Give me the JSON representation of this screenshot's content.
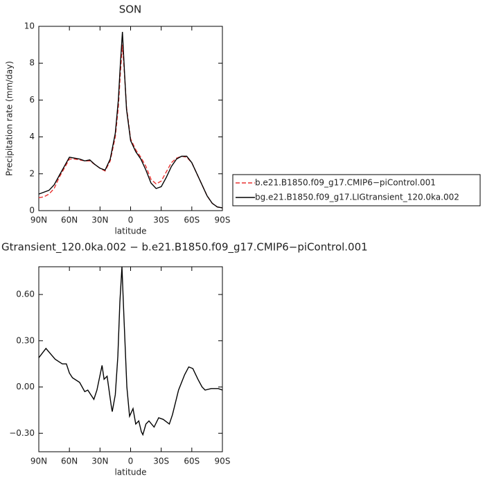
{
  "chart_data": [
    {
      "type": "line",
      "title": "SON",
      "xlabel": "latitude",
      "ylabel": "Precipitation rate (mm/day)",
      "x": [
        90,
        85,
        80,
        75,
        70,
        65,
        60,
        55,
        50,
        45,
        40,
        35,
        30,
        25,
        20,
        15,
        12,
        10,
        8,
        6,
        4,
        0,
        -5,
        -10,
        -15,
        -20,
        -25,
        -30,
        -35,
        -40,
        -45,
        -50,
        -55,
        -60,
        -65,
        -70,
        -75,
        -80,
        -85,
        -90
      ],
      "series": [
        {
          "name": "b.e21.B1850.f09_g17.CMIP6−piControl.001",
          "color": "#e8312f",
          "line_style": "dashed",
          "values": [
            0.7,
            0.75,
            0.9,
            1.2,
            1.8,
            2.3,
            2.8,
            2.8,
            2.75,
            2.7,
            2.7,
            2.5,
            2.3,
            2.15,
            2.7,
            4.0,
            5.6,
            7.5,
            9.0,
            7.4,
            5.6,
            3.9,
            3.3,
            2.9,
            2.4,
            1.7,
            1.45,
            1.6,
            2.1,
            2.6,
            2.85,
            2.95,
            2.9,
            2.6,
            2.0,
            1.4,
            0.8,
            0.4,
            0.2,
            0.15
          ]
        },
        {
          "name": "bg.e21.B1850.f09_g17.LIGtransient_120.0ka.002",
          "color": "#000000",
          "line_style": "solid",
          "values": [
            0.9,
            1.0,
            1.1,
            1.4,
            1.9,
            2.4,
            2.9,
            2.85,
            2.8,
            2.7,
            2.75,
            2.5,
            2.3,
            2.2,
            2.8,
            4.2,
            6.0,
            8.0,
            9.7,
            7.5,
            5.5,
            3.8,
            3.2,
            2.8,
            2.2,
            1.5,
            1.2,
            1.3,
            1.8,
            2.4,
            2.8,
            2.95,
            2.95,
            2.6,
            2.0,
            1.4,
            0.8,
            0.4,
            0.2,
            0.15
          ]
        }
      ],
      "xlim": [
        90,
        -90
      ],
      "xticks": [
        {
          "value": 90,
          "label": "90N"
        },
        {
          "value": 60,
          "label": "60N"
        },
        {
          "value": 30,
          "label": "30N"
        },
        {
          "value": 0,
          "label": "0"
        },
        {
          "value": -30,
          "label": "30S"
        },
        {
          "value": -60,
          "label": "60S"
        },
        {
          "value": -90,
          "label": "90S"
        }
      ],
      "ylim": [
        0,
        10
      ],
      "yticks": [
        0,
        2,
        4,
        6,
        8,
        10
      ],
      "legend": "right"
    },
    {
      "type": "line",
      "title": "Gtransient_120.0ka.002 − b.e21.B1850.f09_g17.CMIP6−piControl.001",
      "xlabel": "latitude",
      "x": [
        90,
        83,
        74,
        67,
        63,
        60,
        57,
        50,
        45,
        42,
        39,
        36,
        33,
        28,
        26,
        23,
        19,
        18,
        15,
        12.5,
        10.5,
        8.5,
        6.5,
        3.7,
        1,
        -2.4,
        -5,
        -8,
        -10.5,
        -12,
        -15,
        -18,
        -23,
        -27.5,
        -32,
        -38,
        -41,
        -47,
        -53,
        -57,
        -61,
        -66,
        -70,
        -73,
        -79,
        -86,
        -90
      ],
      "series": [
        {
          "color": "#000000",
          "line_style": "solid",
          "values": [
            0.19,
            0.25,
            0.18,
            0.15,
            0.15,
            0.09,
            0.06,
            0.03,
            -0.03,
            -0.02,
            -0.05,
            -0.08,
            -0.02,
            0.14,
            0.05,
            0.07,
            -0.12,
            -0.16,
            -0.05,
            0.2,
            0.55,
            0.78,
            0.45,
            0.0,
            -0.19,
            -0.14,
            -0.24,
            -0.22,
            -0.29,
            -0.31,
            -0.24,
            -0.22,
            -0.26,
            -0.2,
            -0.21,
            -0.24,
            -0.18,
            -0.02,
            0.08,
            0.13,
            0.12,
            0.05,
            0.0,
            -0.02,
            -0.01,
            -0.01,
            -0.02
          ]
        }
      ],
      "xlim": [
        90,
        -90
      ],
      "xticks": [
        {
          "value": 90,
          "label": "90N"
        },
        {
          "value": 60,
          "label": "60N"
        },
        {
          "value": 30,
          "label": "30N"
        },
        {
          "value": 0,
          "label": "0"
        },
        {
          "value": -30,
          "label": "30S"
        },
        {
          "value": -60,
          "label": "60S"
        },
        {
          "value": -90,
          "label": "90S"
        }
      ],
      "ylim": [
        -0.42,
        0.78
      ],
      "yticks": [
        {
          "value": -0.3,
          "label": "−0.30"
        },
        {
          "value": 0,
          "label": "0.00"
        },
        {
          "value": 0.3,
          "label": "0.30"
        },
        {
          "value": 0.6,
          "label": "0.60"
        }
      ]
    }
  ]
}
